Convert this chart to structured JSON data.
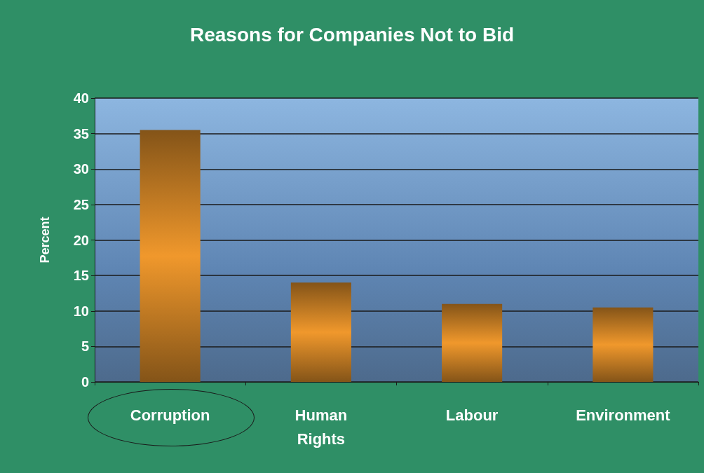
{
  "chart_data": {
    "type": "bar",
    "title": "Reasons for Companies Not to Bid",
    "ylabel": "Percent",
    "categories": [
      "Corruption",
      "Human Rights",
      "Labour",
      "Environment"
    ],
    "values": [
      35.5,
      14,
      11,
      10.5
    ],
    "color": "#f0982c",
    "ylim": [
      0,
      40
    ],
    "yticks": [
      0,
      5,
      10,
      15,
      20,
      25,
      30,
      35,
      40
    ],
    "grid": true
  }
}
